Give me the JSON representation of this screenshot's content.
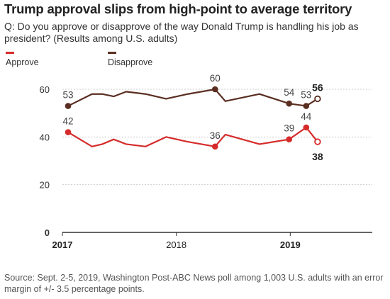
{
  "title": "Trump approval slips from high-point to average territory",
  "question": "Q: Do you approve or disapprove of the way Donald Trump is handling his job as president? (Results among U.S. adults)",
  "source": "Source: Sept. 2-5, 2019, Washington Post-ABC News poll among 1,003 U.S. adults with an error margin of +/- 3.5 percentage points.",
  "colors": {
    "approve": "#d62b2b",
    "disapprove": "#5a2e21",
    "grid": "#cccccc",
    "axis": "#333333"
  },
  "chart_data": {
    "type": "line",
    "title": "Trump approval slips from high-point to average territory",
    "xlabel": "",
    "ylabel": "",
    "ylim": [
      0,
      60
    ],
    "yticks": [
      0,
      20,
      40,
      60
    ],
    "xlim": [
      2017.0,
      2019.72
    ],
    "xticks": [
      {
        "value": 2017.0,
        "label": "2017",
        "bold": true
      },
      {
        "value": 2018.0,
        "label": "2018",
        "bold": false
      },
      {
        "value": 2019.0,
        "label": "2019",
        "bold": true
      }
    ],
    "grid": true,
    "legend": "top-left",
    "series": [
      {
        "name": "Approve",
        "x": [
          2017.05,
          2017.26,
          2017.35,
          2017.45,
          2017.56,
          2017.73,
          2017.91,
          2018.1,
          2018.34,
          2018.43,
          2018.73,
          2018.99,
          2019.14,
          2019.24
        ],
        "values": [
          42,
          36,
          37,
          39,
          37,
          36,
          40,
          38,
          36,
          41,
          37,
          39,
          44,
          38
        ],
        "labeled": [
          {
            "index": 0,
            "label": "42"
          },
          {
            "index": 8,
            "label": "36"
          },
          {
            "index": 11,
            "label": "39"
          },
          {
            "index": 12,
            "label": "44"
          },
          {
            "index": 13,
            "label": "38"
          }
        ]
      },
      {
        "name": "Disapprove",
        "x": [
          2017.05,
          2017.26,
          2017.35,
          2017.45,
          2017.56,
          2017.73,
          2017.91,
          2018.1,
          2018.34,
          2018.43,
          2018.73,
          2018.99,
          2019.14,
          2019.24
        ],
        "values": [
          53,
          58,
          58,
          57,
          59,
          58,
          56,
          58,
          60,
          55,
          58,
          54,
          53,
          56
        ],
        "labeled": [
          {
            "index": 0,
            "label": "53"
          },
          {
            "index": 8,
            "label": "60"
          },
          {
            "index": 11,
            "label": "54"
          },
          {
            "index": 12,
            "label": "53"
          },
          {
            "index": 13,
            "label": "56"
          }
        ]
      }
    ]
  }
}
